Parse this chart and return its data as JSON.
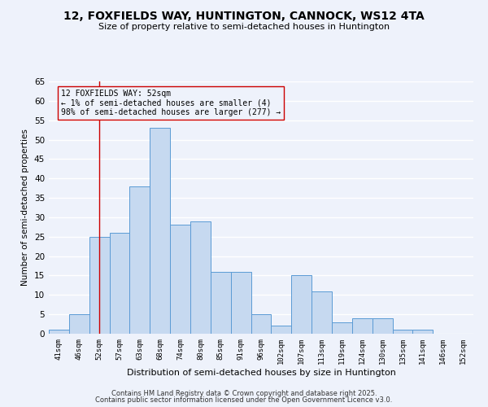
{
  "title": "12, FOXFIELDS WAY, HUNTINGTON, CANNOCK, WS12 4TA",
  "subtitle": "Size of property relative to semi-detached houses in Huntington",
  "xlabel": "Distribution of semi-detached houses by size in Huntington",
  "ylabel": "Number of semi-detached properties",
  "bin_labels": [
    "41sqm",
    "46sqm",
    "52sqm",
    "57sqm",
    "63sqm",
    "68sqm",
    "74sqm",
    "80sqm",
    "85sqm",
    "91sqm",
    "96sqm",
    "102sqm",
    "107sqm",
    "113sqm",
    "119sqm",
    "124sqm",
    "130sqm",
    "135sqm",
    "141sqm",
    "146sqm",
    "152sqm"
  ],
  "bar_values": [
    1,
    5,
    25,
    26,
    38,
    53,
    28,
    29,
    16,
    16,
    5,
    2,
    15,
    11,
    3,
    4,
    4,
    1,
    1,
    0,
    0
  ],
  "bar_color": "#c6d9f0",
  "bar_edge_color": "#5b9bd5",
  "background_color": "#eef2fb",
  "grid_color": "#ffffff",
  "vline_x_index": 2,
  "vline_color": "#cc0000",
  "annotation_text": "12 FOXFIELDS WAY: 52sqm\n← 1% of semi-detached houses are smaller (4)\n98% of semi-detached houses are larger (277) →",
  "annotation_box_edge_color": "#cc0000",
  "ylim": [
    0,
    65
  ],
  "yticks": [
    0,
    5,
    10,
    15,
    20,
    25,
    30,
    35,
    40,
    45,
    50,
    55,
    60,
    65
  ],
  "footer1": "Contains HM Land Registry data © Crown copyright and database right 2025.",
  "footer2": "Contains public sector information licensed under the Open Government Licence v3.0.",
  "title_fontsize": 10,
  "subtitle_fontsize": 8,
  "annotation_fontsize": 7,
  "ylabel_fontsize": 7.5,
  "xlabel_fontsize": 8
}
